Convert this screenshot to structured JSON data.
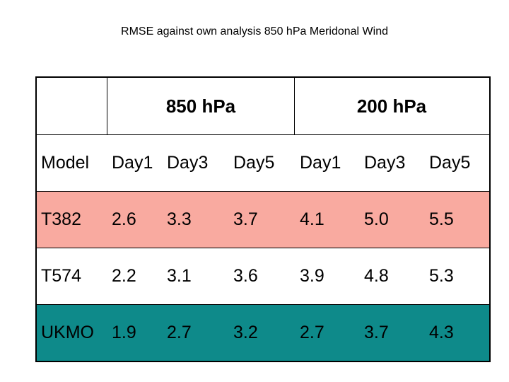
{
  "title": "RMSE  against own analysis  850 hPa Meridonal Wind",
  "table": {
    "groups": [
      "850 hPa",
      "200 hPa"
    ],
    "columns": [
      "Model",
      "Day1",
      "Day3",
      "Day5",
      "Day1",
      "Day3",
      "Day5"
    ],
    "rows": [
      {
        "model": "T382",
        "values": [
          "2.6",
          "3.3",
          "3.7",
          "4.1",
          "5.0",
          "5.5"
        ],
        "color": "#f9aaa0"
      },
      {
        "model": "T574",
        "values": [
          "2.2",
          "3.1",
          "3.6",
          "3.9",
          "4.8",
          "5.3"
        ],
        "color": "#ffffff"
      },
      {
        "model": "UKMO",
        "values": [
          "1.9",
          "2.7",
          "3.2",
          "2.7",
          "3.7",
          "4.3"
        ],
        "color": "#0e8a8a"
      }
    ]
  }
}
